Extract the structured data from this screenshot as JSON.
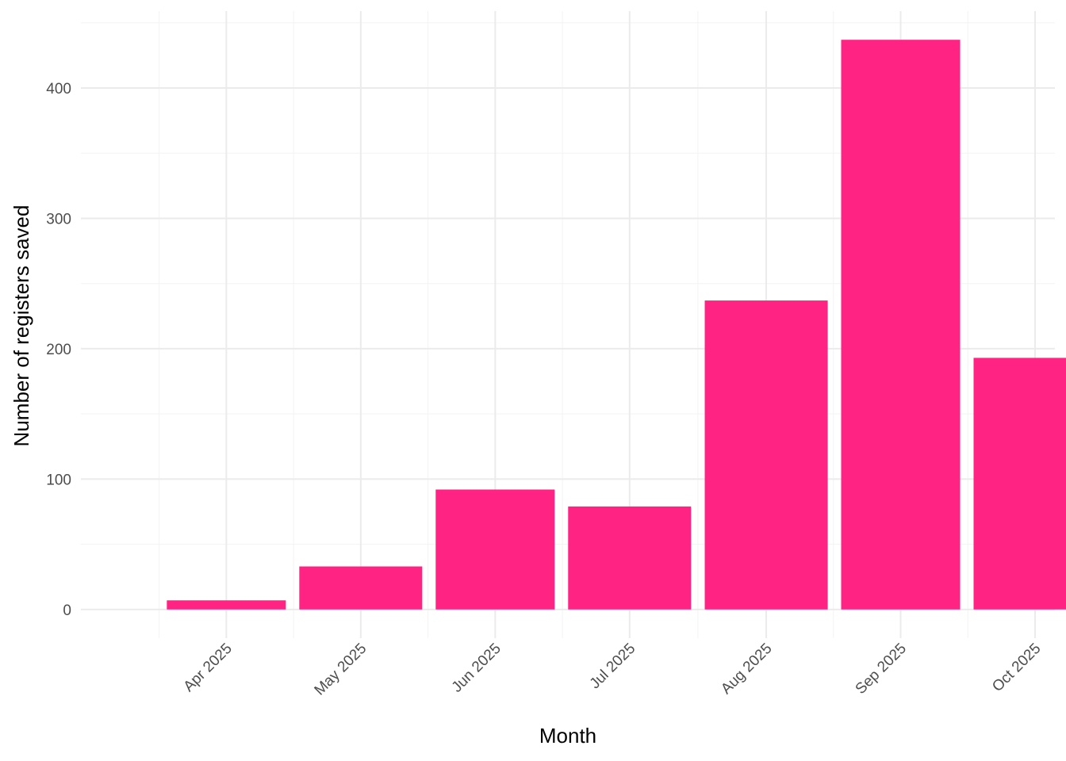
{
  "chart_data": {
    "type": "bar",
    "title": "",
    "xlabel": "Month",
    "ylabel": "Number of registers saved",
    "categories": [
      "Apr 2025",
      "May 2025",
      "Jun 2025",
      "Jul 2025",
      "Aug 2025",
      "Sep 2025",
      "Oct 2025"
    ],
    "x": [
      "2025-04",
      "2025-05",
      "2025-06",
      "2025-07",
      "2025-08",
      "2025-09",
      "2025-10"
    ],
    "values": [
      7,
      33,
      92,
      79,
      237,
      437,
      193
    ],
    "yticks": [
      0,
      100,
      200,
      300,
      400
    ],
    "ylim": [
      -22,
      459
    ],
    "xlim": [
      "2025-03-14",
      "2025-10-21"
    ],
    "grid": true,
    "legend": "none",
    "colors": {
      "bar": "#ff2483",
      "grid_major": "#ebebeb",
      "grid_minor": "#f3f3f3",
      "tick_text": "#4d4d4d"
    }
  }
}
